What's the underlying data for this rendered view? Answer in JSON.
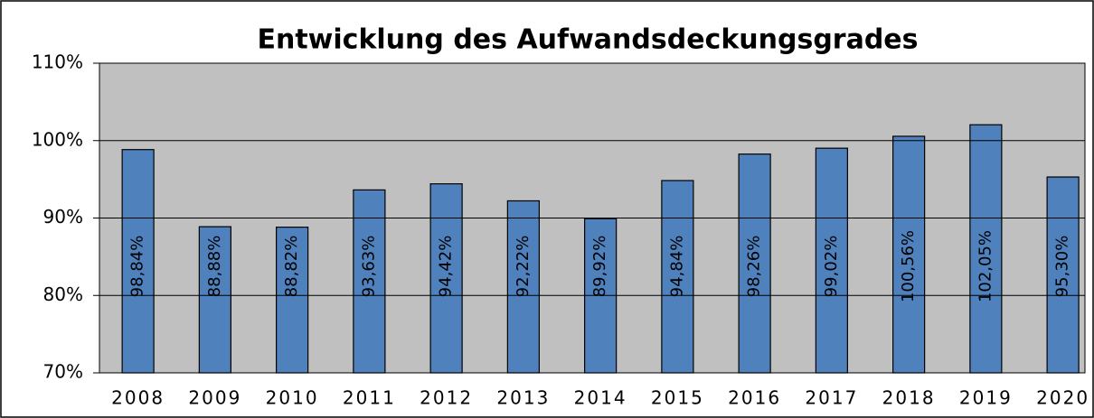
{
  "chart_data": {
    "type": "bar",
    "title": "Entwicklung des Aufwandsdeckungsgrades",
    "categories": [
      "2008",
      "2009",
      "2010",
      "2011",
      "2012",
      "2013",
      "2014",
      "2015",
      "2016",
      "2017",
      "2018",
      "2019",
      "2020"
    ],
    "values": [
      98.84,
      88.88,
      88.82,
      93.63,
      94.42,
      92.22,
      89.92,
      94.84,
      98.26,
      99.02,
      100.56,
      102.05,
      95.3
    ],
    "value_labels": [
      "98,84%",
      "88,88%",
      "88,82%",
      "93,63%",
      "94,42%",
      "92,22%",
      "89,92%",
      "94,84%",
      "98,26%",
      "99,02%",
      "100,56%",
      "102,05%",
      "95,30%"
    ],
    "color": "#4f81bd",
    "ylim": [
      70,
      110
    ],
    "yticks": [
      {
        "value": 70,
        "label": "70%"
      },
      {
        "value": 80,
        "label": "80%"
      },
      {
        "value": 90,
        "label": "90%"
      },
      {
        "value": 100,
        "label": "100%"
      },
      {
        "value": 110,
        "label": "110%"
      }
    ],
    "grid": true
  }
}
